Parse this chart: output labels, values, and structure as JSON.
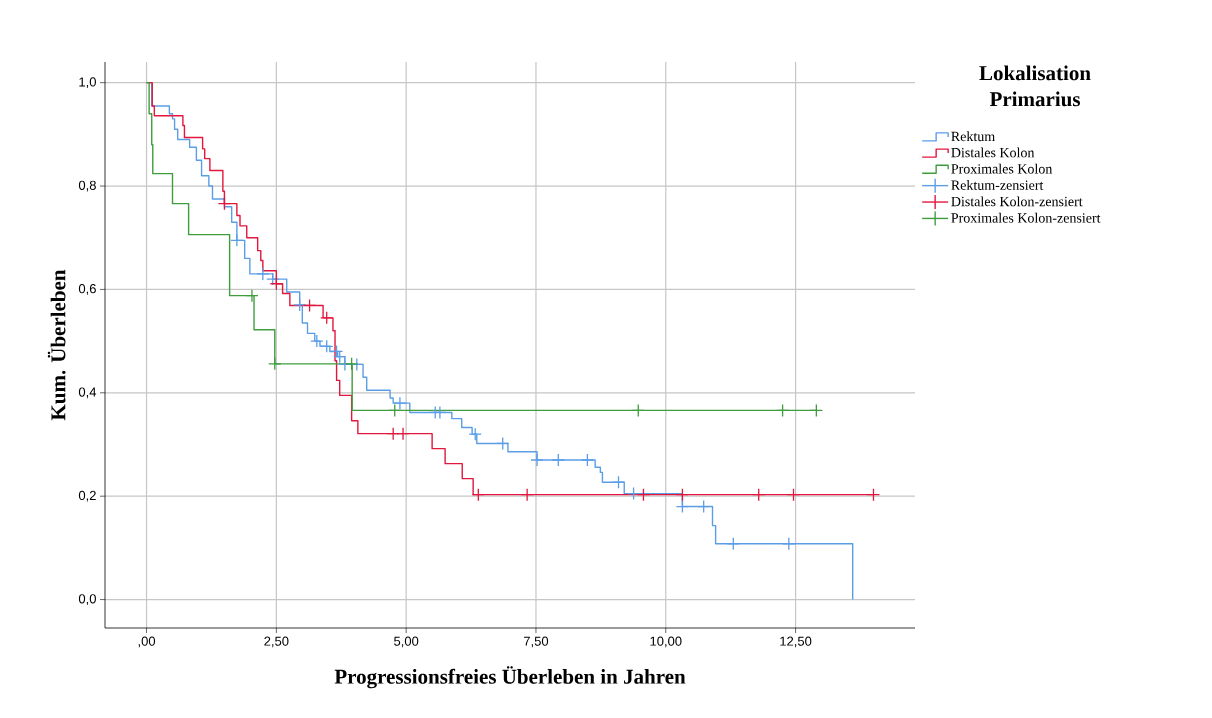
{
  "chart_data": {
    "type": "step",
    "xlabel": "Progressionsfreies Überleben in Jahren",
    "ylabel": "Kum. Überleben",
    "legend_title": "Lokalisation Primarius",
    "xlim": [
      -0.8,
      14.8
    ],
    "ylim": [
      -0.055,
      1.04
    ],
    "xticks": [
      {
        "value": 0,
        "label": ",00"
      },
      {
        "value": 2.5,
        "label": "2,50"
      },
      {
        "value": 5,
        "label": "5,00"
      },
      {
        "value": 7.5,
        "label": "7,50"
      },
      {
        "value": 10,
        "label": "10,00"
      },
      {
        "value": 12.5,
        "label": "12,50"
      }
    ],
    "yticks": [
      {
        "value": 0,
        "label": "0,0"
      },
      {
        "value": 0.2,
        "label": "0,2"
      },
      {
        "value": 0.4,
        "label": "0,4"
      },
      {
        "value": 0.6,
        "label": "0,6"
      },
      {
        "value": 0.8,
        "label": "0,8"
      },
      {
        "value": 1,
        "label": "1,0"
      }
    ],
    "grid": true,
    "legend": "right",
    "series": [
      {
        "name": "Rektum",
        "marker": "none",
        "color": "#5b9ee6",
        "x": [
          0,
          0.1,
          0.44,
          0.5,
          0.54,
          0.6,
          0.83,
          0.96,
          1.06,
          1.2,
          1.27,
          1.5,
          1.64,
          1.74,
          1.89,
          1.99,
          2.43,
          2.7,
          2.95,
          3.0,
          3.1,
          3.24,
          3.34,
          3.53,
          3.68,
          3.82,
          4.17,
          4.24,
          4.69,
          4.75,
          5.07,
          5.88,
          6.07,
          6.27,
          6.36,
          6.96,
          7.52,
          8.64,
          8.74,
          8.78,
          9.2,
          10.32,
          10.9,
          10.96,
          13.6,
          13.6
        ],
        "values": [
          1.0,
          0.955,
          0.94,
          0.93,
          0.91,
          0.89,
          0.875,
          0.85,
          0.82,
          0.8,
          0.775,
          0.76,
          0.73,
          0.695,
          0.66,
          0.63,
          0.62,
          0.595,
          0.57,
          0.535,
          0.515,
          0.5,
          0.49,
          0.48,
          0.47,
          0.455,
          0.43,
          0.405,
          0.39,
          0.38,
          0.362,
          0.35,
          0.333,
          0.32,
          0.302,
          0.286,
          0.27,
          0.256,
          0.246,
          0.227,
          0.205,
          0.18,
          0.143,
          0.108,
          0.108,
          0.0
        ]
      },
      {
        "name": "Distales Kolon",
        "marker": "none",
        "color": "#e3173e",
        "x": [
          0,
          0.11,
          0.15,
          0.7,
          0.73,
          1.08,
          1.12,
          1.22,
          1.47,
          1.5,
          1.74,
          1.8,
          1.93,
          2.14,
          2.2,
          2.24,
          2.5,
          2.62,
          2.76,
          3.4,
          3.59,
          3.63,
          3.66,
          3.72,
          3.95,
          4.07,
          5.5,
          5.75,
          6.08,
          6.29,
          14.0
        ],
        "values": [
          1.0,
          0.955,
          0.936,
          0.917,
          0.894,
          0.872,
          0.853,
          0.83,
          0.79,
          0.766,
          0.743,
          0.723,
          0.7,
          0.675,
          0.656,
          0.636,
          0.611,
          0.592,
          0.569,
          0.545,
          0.52,
          0.462,
          0.424,
          0.395,
          0.346,
          0.321,
          0.292,
          0.263,
          0.234,
          0.203,
          0.203
        ]
      },
      {
        "name": "Proximales Kolon",
        "marker": "none",
        "color": "#3e9e3e",
        "x": [
          0,
          0.05,
          0.1,
          0.12,
          0.5,
          0.81,
          1.6,
          2.07,
          2.47,
          3.96,
          12.9
        ],
        "values": [
          1.0,
          0.94,
          0.88,
          0.824,
          0.766,
          0.706,
          0.588,
          0.522,
          0.456,
          0.366,
          0.366
        ]
      },
      {
        "name": "Rektum-zensiert",
        "type": "scatter",
        "marker": "cross",
        "color": "#5b9ee6",
        "x": [
          1.74,
          2.24,
          2.43,
          2.95,
          3.28,
          3.47,
          3.66,
          3.72,
          3.82,
          4.05,
          4.88,
          5.56,
          5.65,
          6.33,
          6.86,
          7.52,
          7.93,
          8.49,
          9.09,
          9.38,
          10.32,
          10.73,
          11.3,
          12.37
        ],
        "values": [
          0.695,
          0.63,
          0.62,
          0.57,
          0.5,
          0.49,
          0.48,
          0.47,
          0.455,
          0.455,
          0.38,
          0.362,
          0.362,
          0.32,
          0.302,
          0.27,
          0.27,
          0.27,
          0.227,
          0.205,
          0.18,
          0.18,
          0.108,
          0.108
        ]
      },
      {
        "name": "Distales Kolon-zensiert",
        "type": "scatter",
        "marker": "cross",
        "color": "#e3173e",
        "x": [
          1.5,
          2.5,
          3.14,
          3.47,
          4.75,
          4.94,
          6.39,
          7.33,
          9.57,
          10.32,
          11.79,
          12.46,
          14.0
        ],
        "values": [
          0.766,
          0.611,
          0.569,
          0.545,
          0.321,
          0.321,
          0.203,
          0.203,
          0.203,
          0.203,
          0.203,
          0.203,
          0.203
        ]
      },
      {
        "name": "Proximales Kolon-zensiert",
        "type": "scatter",
        "marker": "cross",
        "color": "#3e9e3e",
        "x": [
          2.03,
          2.47,
          3.95,
          4.78,
          9.47,
          12.25,
          12.9
        ],
        "values": [
          0.588,
          0.456,
          0.456,
          0.366,
          0.366,
          0.366,
          0.366
        ]
      }
    ]
  }
}
